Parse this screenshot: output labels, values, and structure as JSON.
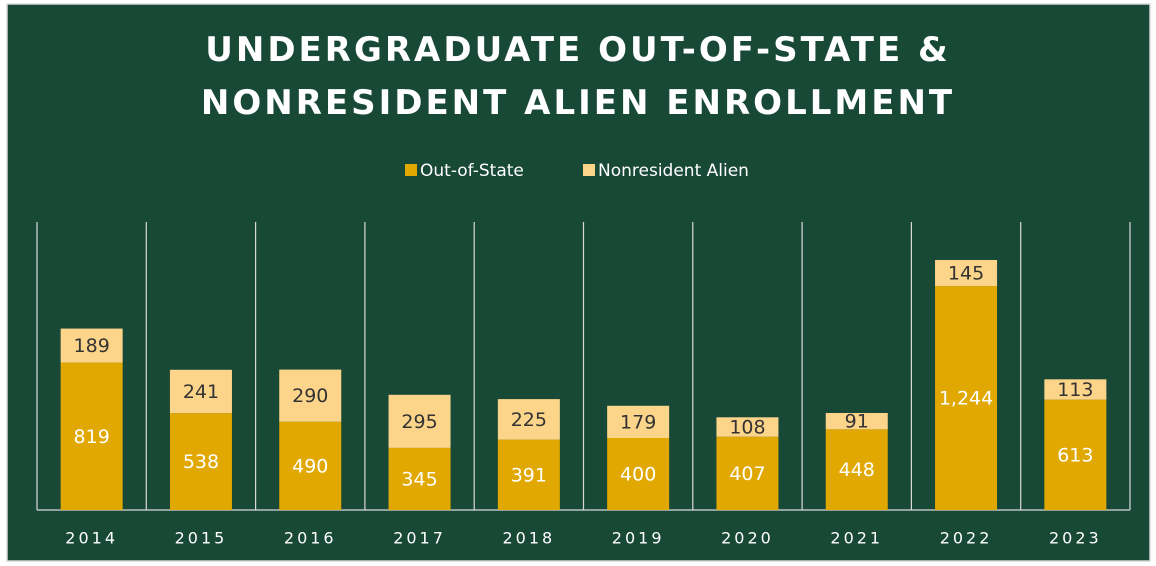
{
  "chart_data": {
    "type": "stacked_bar",
    "title": "UNDERGRADUATE OUT-OF-STATE & NONRESIDENT ALIEN ENROLLMENT",
    "categories": [
      "2014",
      "2015",
      "2016",
      "2017",
      "2018",
      "2019",
      "2020",
      "2021",
      "2022",
      "2023"
    ],
    "series": [
      {
        "name": "Out-of-State",
        "color": "#e0a800",
        "values": [
          819,
          538,
          490,
          345,
          391,
          400,
          407,
          448,
          1244,
          613
        ],
        "value_labels": [
          "819",
          "538",
          "490",
          "345",
          "391",
          "400",
          "407",
          "448",
          "1,244",
          "613"
        ]
      },
      {
        "name": "Nonresident Alien",
        "color": "#fdd58a",
        "values": [
          189,
          241,
          290,
          295,
          225,
          179,
          108,
          91,
          145,
          113
        ]
      }
    ],
    "ylim": [
      0,
      1600
    ]
  }
}
